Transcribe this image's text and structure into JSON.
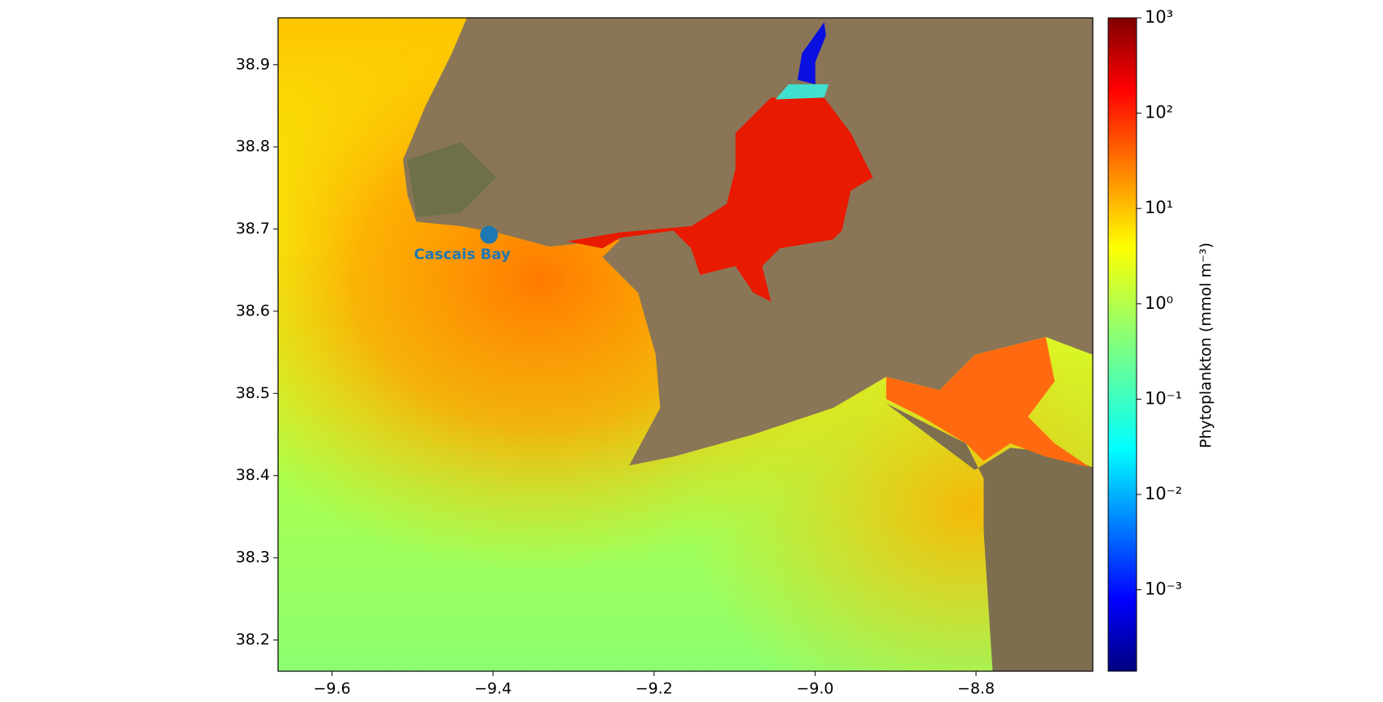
{
  "map": {
    "xlim": [
      -9.667,
      -8.655
    ],
    "ylim": [
      38.162,
      38.957
    ],
    "xticks": [
      {
        "value": -9.6,
        "label": "−9.6"
      },
      {
        "value": -9.4,
        "label": "−9.4"
      },
      {
        "value": -9.2,
        "label": "−9.2"
      },
      {
        "value": -9.0,
        "label": "−9.0"
      },
      {
        "value": -8.8,
        "label": "−8.8"
      }
    ],
    "yticks": [
      38.2,
      38.3,
      38.4,
      38.5,
      38.6,
      38.7,
      38.8,
      38.9
    ],
    "marker": {
      "label": "Cascais Bay",
      "lon": -9.405,
      "lat": 38.693,
      "color": "#1f77b4"
    }
  },
  "colorbar": {
    "label": "Phytoplankton (mmol m⁻³)",
    "scale": "log",
    "clim": [
      0.00014,
      1000
    ],
    "ticks": [
      {
        "value": 0.001,
        "label": "10⁻³"
      },
      {
        "value": 0.01,
        "label": "10⁻²"
      },
      {
        "value": 0.1,
        "label": "10⁻¹"
      },
      {
        "value": 1,
        "label": "10⁰"
      },
      {
        "value": 10,
        "label": "10¹"
      },
      {
        "value": 100,
        "label": "10²"
      },
      {
        "value": 1000,
        "label": "10³"
      }
    ]
  }
}
